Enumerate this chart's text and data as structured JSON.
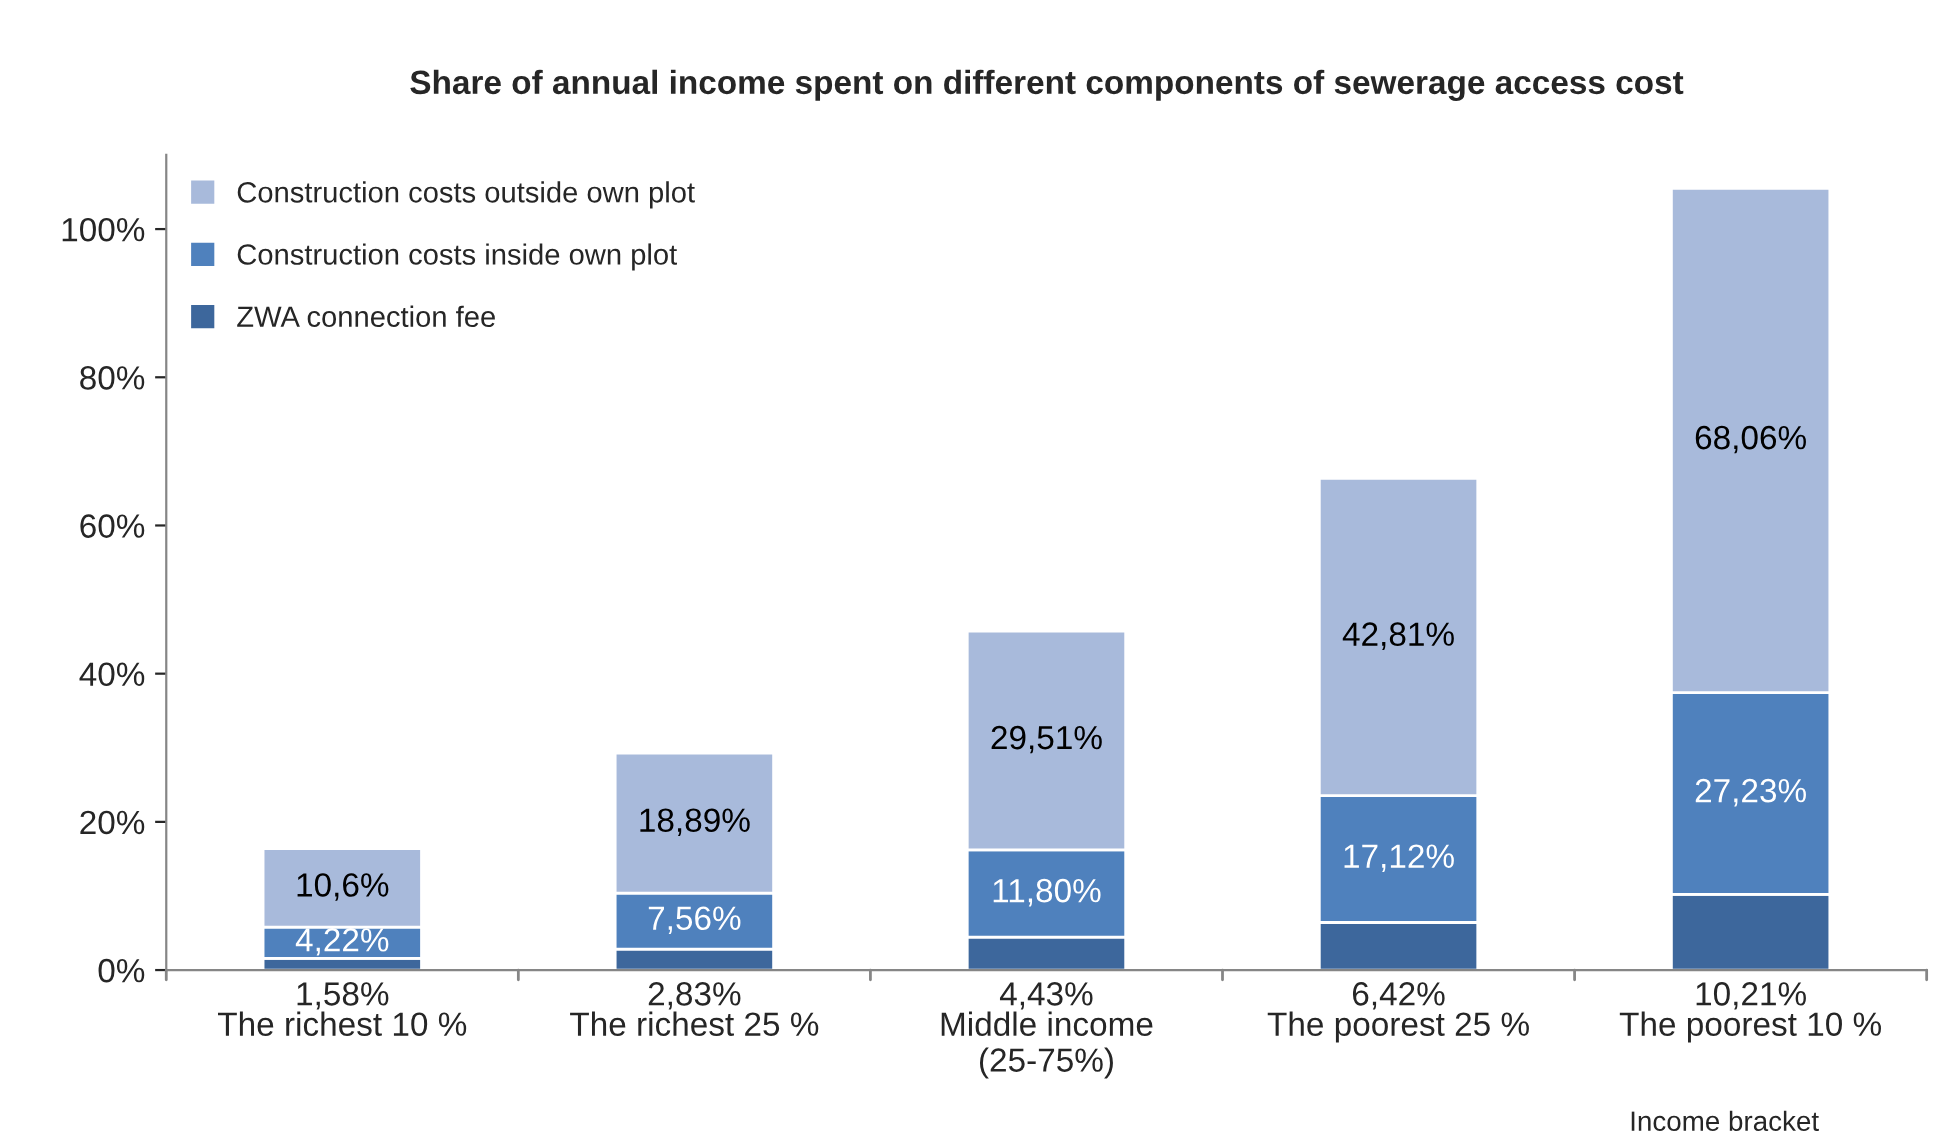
{
  "chart_data": {
    "type": "bar",
    "stacked": true,
    "title": "Share of annual income spent on different components of sewerage access cost",
    "xlabel": "Income bracket",
    "categories": [
      "The richest 10 %",
      "The richest 25 %",
      "Middle income\n(25-75%)",
      "The poorest 25 %",
      "The poorest 10 %"
    ],
    "series": [
      {
        "name": "ZWA connection fee",
        "color": "#3d679c",
        "values": [
          1.58,
          2.83,
          4.43,
          6.42,
          10.21
        ],
        "value_labels": [
          "1,58%",
          "2,83%",
          "4,43%",
          "6,42%",
          "10,21%"
        ]
      },
      {
        "name": "Construction costs inside own plot",
        "color": "#4f81bd",
        "values": [
          4.22,
          7.56,
          11.8,
          17.12,
          27.23
        ],
        "value_labels": [
          "4,22%",
          "7,56%",
          "11,80%",
          "17,12%",
          "27,23%"
        ]
      },
      {
        "name": "Construction costs outside own plot",
        "color": "#a8badb",
        "values": [
          10.6,
          18.89,
          29.51,
          42.81,
          68.06
        ],
        "value_labels": [
          "10,6%",
          "18,89%",
          "29,51%",
          "42,81%",
          "68,06%"
        ]
      }
    ],
    "ylim": [
      0,
      110
    ],
    "yticks": [
      {
        "value": 0,
        "label": "0%"
      },
      {
        "value": 20,
        "label": "20%"
      },
      {
        "value": 40,
        "label": "40%"
      },
      {
        "value": 60,
        "label": "60%"
      },
      {
        "value": 80,
        "label": "80%"
      },
      {
        "value": 100,
        "label": "100%"
      }
    ],
    "grid": false,
    "legend": "top left"
  }
}
